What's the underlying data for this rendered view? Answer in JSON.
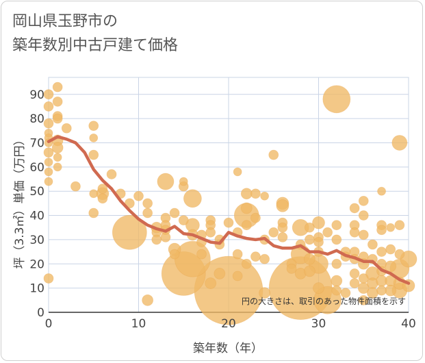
{
  "chart_data": {
    "type": "scatter",
    "title_lines": [
      "岡山県玉野市の",
      "築年数別中古戸建て価格"
    ],
    "xlabel": "築年数（年）",
    "ylabel": "坪（3.3㎡）単価（万円）",
    "xlim": [
      0,
      40
    ],
    "ylim": [
      0,
      97
    ],
    "x_ticks": [
      0,
      10,
      20,
      30,
      40
    ],
    "y_ticks": [
      0,
      10,
      20,
      30,
      40,
      50,
      60,
      70,
      80,
      90
    ],
    "grid": true,
    "annotation": "円の大きさは、取引のあった物件面積を示す",
    "colors": {
      "bubble": "#f0b865",
      "trend": "#d06a50",
      "grid": "#c9d4e6"
    },
    "bubbles": [
      {
        "x": 0,
        "y": 90,
        "s": 7
      },
      {
        "x": 0,
        "y": 85,
        "s": 7
      },
      {
        "x": 0,
        "y": 78,
        "s": 7
      },
      {
        "x": 0,
        "y": 74,
        "s": 6
      },
      {
        "x": 0,
        "y": 72,
        "s": 6
      },
      {
        "x": 0,
        "y": 70,
        "s": 6
      },
      {
        "x": 0,
        "y": 66,
        "s": 7
      },
      {
        "x": 0,
        "y": 62,
        "s": 6
      },
      {
        "x": 0,
        "y": 58,
        "s": 6
      },
      {
        "x": 0,
        "y": 54,
        "s": 6
      },
      {
        "x": 0,
        "y": 14,
        "s": 7
      },
      {
        "x": 1,
        "y": 93,
        "s": 7
      },
      {
        "x": 1,
        "y": 87,
        "s": 7
      },
      {
        "x": 1,
        "y": 81,
        "s": 7
      },
      {
        "x": 1,
        "y": 80,
        "s": 7
      },
      {
        "x": 1,
        "y": 71,
        "s": 8
      },
      {
        "x": 1,
        "y": 68,
        "s": 8
      },
      {
        "x": 1,
        "y": 64,
        "s": 6
      },
      {
        "x": 1,
        "y": 60,
        "s": 6
      },
      {
        "x": 2,
        "y": 76,
        "s": 7
      },
      {
        "x": 3,
        "y": 52,
        "s": 7
      },
      {
        "x": 5,
        "y": 77,
        "s": 7
      },
      {
        "x": 5,
        "y": 72,
        "s": 6
      },
      {
        "x": 5,
        "y": 65,
        "s": 7
      },
      {
        "x": 5,
        "y": 49,
        "s": 6
      },
      {
        "x": 5,
        "y": 41,
        "s": 7
      },
      {
        "x": 6,
        "y": 51,
        "s": 7
      },
      {
        "x": 6,
        "y": 49,
        "s": 9
      },
      {
        "x": 6,
        "y": 47,
        "s": 7
      },
      {
        "x": 7,
        "y": 57,
        "s": 7
      },
      {
        "x": 8,
        "y": 49,
        "s": 7
      },
      {
        "x": 9,
        "y": 45,
        "s": 7
      },
      {
        "x": 9,
        "y": 33,
        "s": 25
      },
      {
        "x": 10,
        "y": 48,
        "s": 7
      },
      {
        "x": 11,
        "y": 45,
        "s": 7
      },
      {
        "x": 11,
        "y": 41,
        "s": 7
      },
      {
        "x": 11,
        "y": 5,
        "s": 8
      },
      {
        "x": 12,
        "y": 35,
        "s": 8
      },
      {
        "x": 12,
        "y": 33,
        "s": 7
      },
      {
        "x": 12,
        "y": 30,
        "s": 7
      },
      {
        "x": 13,
        "y": 54,
        "s": 12
      },
      {
        "x": 13,
        "y": 39,
        "s": 7
      },
      {
        "x": 13,
        "y": 36,
        "s": 7
      },
      {
        "x": 13,
        "y": 34,
        "s": 7
      },
      {
        "x": 13,
        "y": 31,
        "s": 7
      },
      {
        "x": 14,
        "y": 41,
        "s": 7
      },
      {
        "x": 14,
        "y": 26,
        "s": 9
      },
      {
        "x": 14,
        "y": 24,
        "s": 7
      },
      {
        "x": 15,
        "y": 54,
        "s": 6
      },
      {
        "x": 15,
        "y": 52,
        "s": 7
      },
      {
        "x": 15,
        "y": 38,
        "s": 7
      },
      {
        "x": 15,
        "y": 16,
        "s": 32
      },
      {
        "x": 16,
        "y": 47,
        "s": 13
      },
      {
        "x": 16,
        "y": 36,
        "s": 10
      },
      {
        "x": 16,
        "y": 22,
        "s": 26
      },
      {
        "x": 16,
        "y": 32,
        "s": 8
      },
      {
        "x": 17,
        "y": 32,
        "s": 7
      },
      {
        "x": 17,
        "y": 29,
        "s": 7
      },
      {
        "x": 17,
        "y": 24,
        "s": 7
      },
      {
        "x": 18,
        "y": 38,
        "s": 7
      },
      {
        "x": 18,
        "y": 36,
        "s": 7
      },
      {
        "x": 18,
        "y": 33,
        "s": 7
      },
      {
        "x": 18,
        "y": 12,
        "s": 8
      },
      {
        "x": 19,
        "y": 30,
        "s": 7
      },
      {
        "x": 19,
        "y": 28,
        "s": 7
      },
      {
        "x": 19,
        "y": 16,
        "s": 8
      },
      {
        "x": 20,
        "y": 37,
        "s": 7
      },
      {
        "x": 20,
        "y": 9,
        "s": 50
      },
      {
        "x": 21,
        "y": 58,
        "s": 6
      },
      {
        "x": 21,
        "y": 33,
        "s": 7
      },
      {
        "x": 21,
        "y": 24,
        "s": 7
      },
      {
        "x": 21,
        "y": 15,
        "s": 7
      },
      {
        "x": 22,
        "y": 49,
        "s": 8
      },
      {
        "x": 22,
        "y": 43,
        "s": 8
      },
      {
        "x": 22,
        "y": 40,
        "s": 18
      },
      {
        "x": 22,
        "y": 36,
        "s": 7
      },
      {
        "x": 22,
        "y": 20,
        "s": 7
      },
      {
        "x": 23,
        "y": 49,
        "s": 7
      },
      {
        "x": 23,
        "y": 39,
        "s": 7
      },
      {
        "x": 23,
        "y": 23,
        "s": 7
      },
      {
        "x": 24,
        "y": 48,
        "s": 6
      },
      {
        "x": 24,
        "y": 30,
        "s": 7
      },
      {
        "x": 24,
        "y": 22,
        "s": 7
      },
      {
        "x": 24,
        "y": 8,
        "s": 8
      },
      {
        "x": 25,
        "y": 65,
        "s": 7
      },
      {
        "x": 25,
        "y": 33,
        "s": 7
      },
      {
        "x": 26,
        "y": 45,
        "s": 9
      },
      {
        "x": 26,
        "y": 44,
        "s": 9
      },
      {
        "x": 26,
        "y": 37,
        "s": 7
      },
      {
        "x": 26,
        "y": 35,
        "s": 7
      },
      {
        "x": 26,
        "y": 31,
        "s": 7
      },
      {
        "x": 27,
        "y": 20,
        "s": 7
      },
      {
        "x": 27,
        "y": 18,
        "s": 7
      },
      {
        "x": 28,
        "y": 35,
        "s": 12
      },
      {
        "x": 28,
        "y": 28,
        "s": 7
      },
      {
        "x": 28,
        "y": 24,
        "s": 14
      },
      {
        "x": 28,
        "y": 16,
        "s": 8
      },
      {
        "x": 28,
        "y": 10,
        "s": 46
      },
      {
        "x": 29,
        "y": 35,
        "s": 7
      },
      {
        "x": 29,
        "y": 30,
        "s": 7
      },
      {
        "x": 29,
        "y": 22,
        "s": 8
      },
      {
        "x": 29,
        "y": 17,
        "s": 8
      },
      {
        "x": 30,
        "y": 37,
        "s": 9
      },
      {
        "x": 30,
        "y": 31,
        "s": 7
      },
      {
        "x": 30,
        "y": 29,
        "s": 7
      },
      {
        "x": 30,
        "y": 25,
        "s": 7
      },
      {
        "x": 30,
        "y": 20,
        "s": 14
      },
      {
        "x": 30,
        "y": 10,
        "s": 8
      },
      {
        "x": 31,
        "y": 33,
        "s": 7
      },
      {
        "x": 31,
        "y": 5,
        "s": 20
      },
      {
        "x": 32,
        "y": 88,
        "s": 20
      },
      {
        "x": 32,
        "y": 36,
        "s": 7
      },
      {
        "x": 32,
        "y": 30,
        "s": 7
      },
      {
        "x": 32,
        "y": 20,
        "s": 7
      },
      {
        "x": 32,
        "y": 13,
        "s": 8
      },
      {
        "x": 32,
        "y": 9,
        "s": 7
      },
      {
        "x": 33,
        "y": 25,
        "s": 7
      },
      {
        "x": 33,
        "y": 23,
        "s": 7
      },
      {
        "x": 33,
        "y": 8,
        "s": 7
      },
      {
        "x": 34,
        "y": 43,
        "s": 7
      },
      {
        "x": 34,
        "y": 36,
        "s": 7
      },
      {
        "x": 34,
        "y": 33,
        "s": 7
      },
      {
        "x": 34,
        "y": 25,
        "s": 7
      },
      {
        "x": 34,
        "y": 22,
        "s": 7
      },
      {
        "x": 34,
        "y": 16,
        "s": 7
      },
      {
        "x": 34,
        "y": 12,
        "s": 7
      },
      {
        "x": 35,
        "y": 46,
        "s": 7
      },
      {
        "x": 35,
        "y": 40,
        "s": 7
      },
      {
        "x": 35,
        "y": 32,
        "s": 7
      },
      {
        "x": 35,
        "y": 23,
        "s": 7
      },
      {
        "x": 35,
        "y": 20,
        "s": 8
      },
      {
        "x": 35,
        "y": 14,
        "s": 7
      },
      {
        "x": 35,
        "y": 10,
        "s": 8
      },
      {
        "x": 35,
        "y": 5,
        "s": 7
      },
      {
        "x": 36,
        "y": 28,
        "s": 7
      },
      {
        "x": 36,
        "y": 22,
        "s": 7
      },
      {
        "x": 36,
        "y": 16,
        "s": 10
      },
      {
        "x": 36,
        "y": 12,
        "s": 8
      },
      {
        "x": 36,
        "y": 8,
        "s": 8
      },
      {
        "x": 37,
        "y": 50,
        "s": 6
      },
      {
        "x": 37,
        "y": 36,
        "s": 7
      },
      {
        "x": 37,
        "y": 34,
        "s": 7
      },
      {
        "x": 37,
        "y": 25,
        "s": 7
      },
      {
        "x": 37,
        "y": 20,
        "s": 7
      },
      {
        "x": 37,
        "y": 17,
        "s": 7
      },
      {
        "x": 37,
        "y": 13,
        "s": 8
      },
      {
        "x": 37,
        "y": 9,
        "s": 7
      },
      {
        "x": 38,
        "y": 35,
        "s": 6
      },
      {
        "x": 38,
        "y": 26,
        "s": 7
      },
      {
        "x": 38,
        "y": 19,
        "s": 8
      },
      {
        "x": 38,
        "y": 13,
        "s": 8
      },
      {
        "x": 38,
        "y": 9,
        "s": 8
      },
      {
        "x": 39,
        "y": 70,
        "s": 11
      },
      {
        "x": 39,
        "y": 36,
        "s": 7
      },
      {
        "x": 39,
        "y": 24,
        "s": 7
      },
      {
        "x": 39,
        "y": 18,
        "s": 14
      },
      {
        "x": 39,
        "y": 12,
        "s": 9
      },
      {
        "x": 39,
        "y": 9,
        "s": 11
      },
      {
        "x": 40,
        "y": 22,
        "s": 12
      },
      {
        "x": 40,
        "y": 11,
        "s": 9
      }
    ],
    "trend": {
      "name": "",
      "x": [
        0,
        1,
        2,
        3,
        4,
        5,
        6,
        7,
        8,
        9,
        10,
        11,
        12,
        13,
        14,
        15,
        16,
        17,
        18,
        19,
        20,
        21,
        22,
        23,
        24,
        25,
        26,
        27,
        28,
        29,
        30,
        31,
        32,
        33,
        34,
        35,
        36,
        37,
        38,
        39,
        40
      ],
      "y": [
        70.5,
        72.5,
        71.5,
        70,
        66,
        59,
        54.5,
        51,
        46,
        42,
        38.5,
        36,
        34.5,
        33.5,
        35.5,
        32.5,
        32,
        30.5,
        29,
        28.5,
        33,
        31.5,
        30.5,
        30,
        30.5,
        27.5,
        26.5,
        26.5,
        27.5,
        25,
        25,
        24,
        25.5,
        23.5,
        22.5,
        21,
        21,
        17.5,
        16,
        13.5,
        12
      ]
    }
  }
}
